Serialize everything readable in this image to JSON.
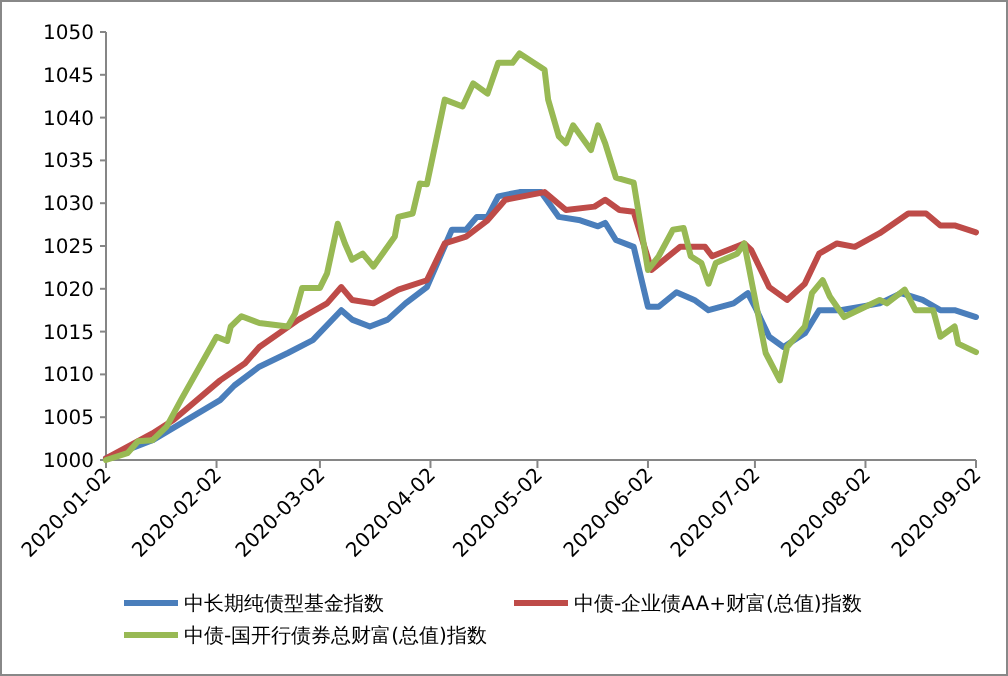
{
  "chart_data": {
    "type": "line",
    "xlim": [
      "2020-01-02",
      "2020-09-02"
    ],
    "xticks": [
      "2020-01-02",
      "2020-02-02",
      "2020-03-02",
      "2020-04-02",
      "2020-05-02",
      "2020-06-02",
      "2020-07-02",
      "2020-08-02",
      "2020-09-02"
    ],
    "ylim": [
      1000,
      1050
    ],
    "yticks": [
      1000,
      1005,
      1010,
      1015,
      1020,
      1025,
      1030,
      1035,
      1040,
      1045,
      1050
    ],
    "grid": false,
    "legend": "bottom",
    "marker": "none",
    "line_style": "solid",
    "series": [
      {
        "name": "中长期纯债型基金指数",
        "color": "#4a7ebb",
        "x": [
          "2020-01-02",
          "2020-01-15",
          "2020-02-03",
          "2020-02-07",
          "2020-02-14",
          "2020-02-22",
          "2020-02-29",
          "2020-03-08",
          "2020-03-11",
          "2020-03-16",
          "2020-03-21",
          "2020-03-26",
          "2020-04-01",
          "2020-04-08",
          "2020-04-12",
          "2020-04-15",
          "2020-04-18",
          "2020-04-21",
          "2020-04-27",
          "2020-05-03",
          "2020-05-08",
          "2020-05-14",
          "2020-05-19",
          "2020-05-21",
          "2020-05-24",
          "2020-05-29",
          "2020-06-02",
          "2020-06-05",
          "2020-06-10",
          "2020-06-15",
          "2020-06-19",
          "2020-06-26",
          "2020-06-30",
          "2020-07-02",
          "2020-07-06",
          "2020-07-10",
          "2020-07-16",
          "2020-07-20",
          "2020-07-26",
          "2020-08-06",
          "2020-08-12",
          "2020-08-18",
          "2020-08-23",
          "2020-08-27",
          "2020-09-02"
        ],
        "values": [
          1000.2,
          1002.3,
          1007,
          1008.7,
          1010.9,
          1012.5,
          1014,
          1017.5,
          1016.4,
          1015.6,
          1016.4,
          1018.3,
          1020.2,
          1026.9,
          1026.9,
          1028.4,
          1028.4,
          1030.8,
          1031.3,
          1031.3,
          1028.4,
          1028,
          1027.3,
          1027.7,
          1025.7,
          1024.9,
          1017.9,
          1017.9,
          1019.6,
          1018.7,
          1017.5,
          1018.3,
          1019.5,
          1017.9,
          1014.4,
          1013.2,
          1014.8,
          1017.5,
          1017.5,
          1018.3,
          1019.5,
          1018.7,
          1017.5,
          1017.5,
          1016.7
        ]
      },
      {
        "name": "中债-企业债AA+财富(总值)指数",
        "color": "#be4b48",
        "x": [
          "2020-01-02",
          "2020-01-15",
          "2020-01-21",
          "2020-02-03",
          "2020-02-10",
          "2020-02-14",
          "2020-02-25",
          "2020-03-04",
          "2020-03-08",
          "2020-03-11",
          "2020-03-17",
          "2020-03-24",
          "2020-04-01",
          "2020-04-06",
          "2020-04-12",
          "2020-04-18",
          "2020-04-23",
          "2020-05-04",
          "2020-05-10",
          "2020-05-18",
          "2020-05-21",
          "2020-05-25",
          "2020-05-29",
          "2020-06-03",
          "2020-06-11",
          "2020-06-18",
          "2020-06-20",
          "2020-06-29",
          "2020-07-01",
          "2020-07-06",
          "2020-07-11",
          "2020-07-16",
          "2020-07-20",
          "2020-07-25",
          "2020-07-30",
          "2020-08-06",
          "2020-08-14",
          "2020-08-19",
          "2020-08-23",
          "2020-08-27",
          "2020-09-02"
        ],
        "values": [
          1000.2,
          1003.1,
          1004.7,
          1009.3,
          1011.3,
          1013.2,
          1016.4,
          1018.3,
          1020.2,
          1018.7,
          1018.3,
          1019.9,
          1021,
          1025.3,
          1026.1,
          1028,
          1030.4,
          1031.3,
          1029.2,
          1029.6,
          1030.4,
          1029.2,
          1029,
          1022.2,
          1024.9,
          1024.9,
          1023.8,
          1025.3,
          1024.5,
          1020.2,
          1018.7,
          1020.6,
          1024.1,
          1025.3,
          1024.9,
          1026.5,
          1028.8,
          1028.8,
          1027.4,
          1027.4,
          1026.6
        ]
      },
      {
        "name": "中债-国开行债券总财富(总值)指数",
        "color": "#98b954",
        "x": [
          "2020-01-02",
          "2020-01-08",
          "2020-01-11",
          "2020-01-15",
          "2020-01-19",
          "2020-01-23",
          "2020-02-02",
          "2020-02-05",
          "2020-02-06",
          "2020-02-09",
          "2020-02-14",
          "2020-02-22",
          "2020-02-24",
          "2020-02-26",
          "2020-03-02",
          "2020-03-04",
          "2020-03-07",
          "2020-03-09",
          "2020-03-11",
          "2020-03-14",
          "2020-03-17",
          "2020-03-23",
          "2020-03-24",
          "2020-03-28",
          "2020-03-30",
          "2020-04-01",
          "2020-04-06",
          "2020-04-11",
          "2020-04-14",
          "2020-04-18",
          "2020-04-21",
          "2020-04-25",
          "2020-04-27",
          "2020-05-04",
          "2020-05-05",
          "2020-05-08",
          "2020-05-10",
          "2020-05-12",
          "2020-05-17",
          "2020-05-19",
          "2020-05-21",
          "2020-05-24",
          "2020-05-29",
          "2020-06-02",
          "2020-06-05",
          "2020-06-09",
          "2020-06-12",
          "2020-06-14",
          "2020-06-17",
          "2020-06-19",
          "2020-06-21",
          "2020-06-27",
          "2020-06-29",
          "2020-07-01",
          "2020-07-05",
          "2020-07-09",
          "2020-07-11",
          "2020-07-16",
          "2020-07-18",
          "2020-07-21",
          "2020-07-23",
          "2020-07-27",
          "2020-08-02",
          "2020-08-06",
          "2020-08-08",
          "2020-08-13",
          "2020-08-16",
          "2020-08-21",
          "2020-08-23",
          "2020-08-27",
          "2020-08-28",
          "2020-09-02"
        ],
        "values": [
          1000,
          1000.8,
          1002.2,
          1002.3,
          1003.9,
          1007,
          1014.4,
          1013.9,
          1015.6,
          1016.8,
          1016,
          1015.6,
          1017.1,
          1020.1,
          1020.1,
          1021.8,
          1027.6,
          1025.3,
          1023.4,
          1024.1,
          1022.6,
          1026.1,
          1028.4,
          1028.8,
          1032.3,
          1032.2,
          1042.1,
          1041.3,
          1044,
          1042.8,
          1046.4,
          1046.4,
          1047.5,
          1045.6,
          1042.1,
          1037.8,
          1037,
          1039.1,
          1036.2,
          1039.1,
          1037,
          1033,
          1032.4,
          1022.2,
          1023.8,
          1026.9,
          1027.1,
          1023.8,
          1023,
          1020.6,
          1023,
          1024.1,
          1025.3,
          1021,
          1012.5,
          1009.3,
          1013.2,
          1015.6,
          1019.5,
          1021,
          1019.1,
          1016.7,
          1017.9,
          1018.7,
          1018.3,
          1019.9,
          1017.5,
          1017.5,
          1014.4,
          1015.6,
          1013.6,
          1012.6
        ]
      }
    ]
  }
}
